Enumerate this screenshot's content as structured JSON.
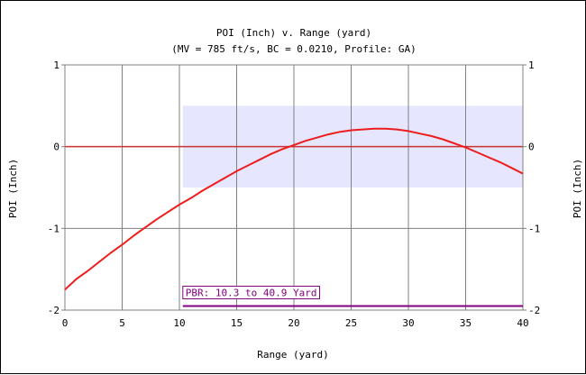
{
  "chart_data": {
    "type": "line",
    "title": "POI (Inch) v. Range (yard)",
    "subtitle": "(MV = 785 ft/s, BC = 0.0210, Profile: GA)",
    "xlabel": "Range (yard)",
    "ylabel": "POI (Inch)",
    "ylabel_right": "POI (Inch)",
    "xlim": [
      0,
      40
    ],
    "ylim": [
      -2,
      1
    ],
    "x_ticks": [
      0,
      5,
      10,
      15,
      20,
      25,
      30,
      35,
      40
    ],
    "y_ticks": [
      -2,
      -1,
      0,
      1
    ],
    "grid": true,
    "zero_line": 0,
    "band": {
      "x_start": 10.3,
      "x_end": 40.9,
      "y_min": -0.5,
      "y_max": 0.5,
      "color": "#e6e6ff"
    },
    "pbr": {
      "label": "PBR: 10.3 to 40.9 Yard",
      "x_start": 10.3,
      "x_end": 40.9,
      "y": -1.95,
      "color": "#800080"
    },
    "series": [
      {
        "color": "#ee1c1c",
        "x": [
          0,
          1,
          2,
          3,
          4,
          5,
          6,
          7,
          8,
          9,
          10,
          11,
          12,
          13,
          14,
          15,
          16,
          17,
          18,
          19,
          20,
          21,
          22,
          23,
          24,
          25,
          26,
          27,
          28,
          29,
          30,
          31,
          32,
          33,
          34,
          35,
          36,
          37,
          38,
          39,
          40
        ],
        "y": [
          -1.75,
          -1.62,
          -1.52,
          -1.41,
          -1.3,
          -1.2,
          -1.09,
          -0.99,
          -0.89,
          -0.8,
          -0.71,
          -0.63,
          -0.54,
          -0.46,
          -0.38,
          -0.3,
          -0.23,
          -0.16,
          -0.09,
          -0.03,
          0.02,
          0.07,
          0.11,
          0.15,
          0.18,
          0.2,
          0.21,
          0.22,
          0.22,
          0.21,
          0.19,
          0.16,
          0.13,
          0.09,
          0.04,
          -0.01,
          -0.07,
          -0.13,
          -0.19,
          -0.26,
          -0.33
        ]
      }
    ]
  }
}
